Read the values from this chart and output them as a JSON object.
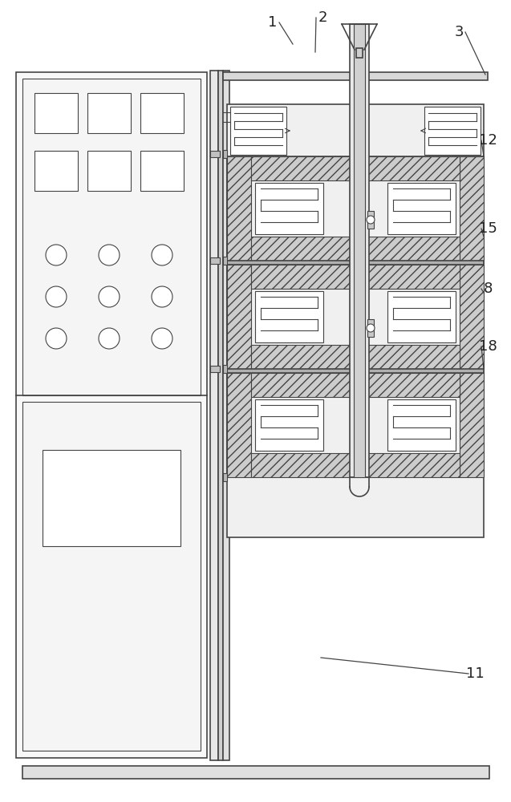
{
  "bg_color": "#ffffff",
  "lc": "#444444",
  "lc_thin": "#555555",
  "hatch_fc": "#cccccc",
  "white": "#ffffff",
  "light_gray": "#f0f0f0",
  "med_gray": "#d8d8d8",
  "dark_gray": "#b0b0b0"
}
